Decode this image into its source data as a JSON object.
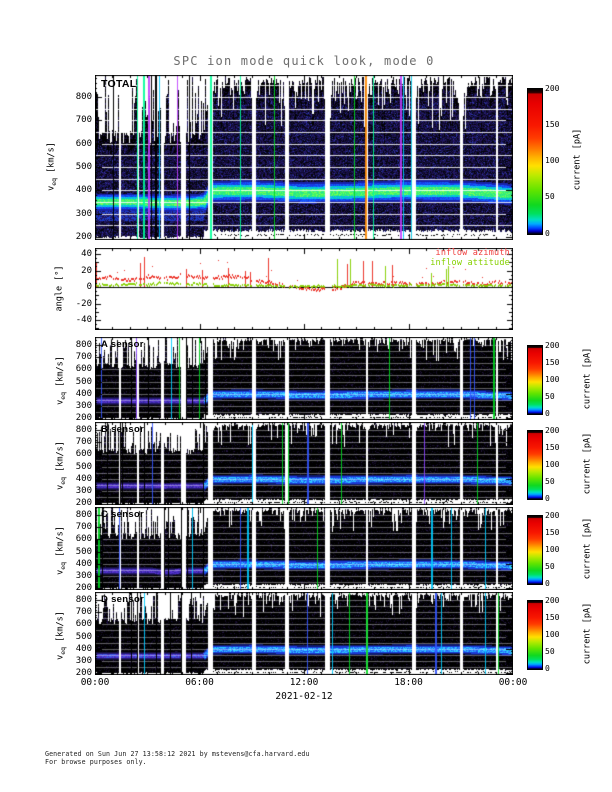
{
  "title": "SPC ion mode quick look, mode 0",
  "x_axis": {
    "tick_labels": [
      "00:00",
      "06:00",
      "12:00",
      "18:00",
      "00:00"
    ],
    "date_label": "2021-02-12"
  },
  "velocity_axis": {
    "label_main": "v",
    "label_sub": "eq",
    "label_unit": " [km/s]",
    "tick_labels": [
      "800",
      "700",
      "600",
      "500",
      "400",
      "300",
      "200"
    ]
  },
  "angle_axis": {
    "label": "angle [°]",
    "tick_labels": [
      "40",
      "20",
      "0",
      "-20",
      "-40"
    ]
  },
  "colorbar": {
    "label": "current [pA]",
    "tick_labels": [
      "200",
      "150",
      "100",
      "50",
      "0"
    ]
  },
  "panels": {
    "total": {
      "label": "TOTAL"
    },
    "angle": {
      "legend": [
        {
          "label": "inflow azimuth",
          "color": "#f04040"
        },
        {
          "label": "inflow attitude",
          "color": "#86d000"
        }
      ]
    },
    "a": {
      "label": "A sensor"
    },
    "b": {
      "label": "B sensor"
    },
    "c": {
      "label": "C sensor"
    },
    "d": {
      "label": "D sensor"
    }
  },
  "footer": {
    "line1": "Generated on Sun Jun 27 13:58:12 2021 by mstevens@cfa.harvard.edu",
    "line2": "For browse purposes only."
  },
  "chart_data": [
    {
      "type": "heatmap",
      "panel": "TOTAL",
      "x_unit": "hours",
      "x_range": [
        0,
        24
      ],
      "x_date": "2021-02-12",
      "y_label": "v_eq [km/s]",
      "y_range": [
        200,
        850
      ],
      "y_ticks": [
        200,
        300,
        400,
        500,
        600,
        700,
        800
      ],
      "color_label": "current [pA]",
      "color_range": [
        0,
        200
      ],
      "color_ticks": [
        0,
        50,
        100,
        150,
        200
      ],
      "bulk_speed_band": {
        "x_hours": [
          0,
          2,
          4,
          6,
          6.3,
          6.6,
          9,
          12,
          15,
          18,
          21,
          24
        ],
        "v_kms": [
          348,
          350,
          345,
          348,
          352,
          395,
          398,
          388,
          392,
          398,
          396,
          382
        ]
      }
    },
    {
      "type": "scatter",
      "panel": "angle",
      "y_label": "angle [°]",
      "y_range": [
        -47,
        47
      ],
      "y_ticks": [
        -40,
        -20,
        0,
        20,
        40
      ],
      "series": [
        {
          "name": "inflow azimuth",
          "color": "#f04040",
          "x_hours": [
            0,
            1,
            2,
            3,
            4,
            5,
            6,
            7,
            8,
            9,
            10,
            11,
            12,
            13,
            14,
            15,
            16,
            17,
            18,
            19,
            20,
            21,
            22,
            23,
            24
          ],
          "angle_deg": [
            9,
            12,
            8,
            13,
            10,
            14,
            12,
            11,
            13,
            9,
            5,
            1,
            -2,
            -3,
            -2,
            6,
            3,
            5,
            4,
            3,
            5,
            7,
            3,
            5,
            4
          ]
        },
        {
          "name": "inflow attitude",
          "color": "#86d000",
          "x_hours": [
            0,
            1,
            2,
            3,
            4,
            5,
            6,
            7,
            8,
            9,
            10,
            11,
            12,
            13,
            14,
            15,
            16,
            17,
            18,
            19,
            20,
            21,
            22,
            23,
            24
          ],
          "angle_deg": [
            2,
            1,
            3,
            2,
            5,
            2,
            3,
            1,
            2,
            1,
            1,
            0,
            0,
            1,
            0,
            1,
            2,
            1,
            2,
            1,
            3,
            2,
            1,
            2,
            1
          ]
        }
      ]
    },
    {
      "type": "heatmap",
      "panel": "A sensor",
      "x_range": [
        0,
        24
      ],
      "y_label": "v_eq [km/s]",
      "y_range": [
        200,
        850
      ],
      "y_ticks": [
        200,
        300,
        400,
        500,
        600,
        700,
        800
      ],
      "color_label": "current [pA]",
      "color_range": [
        0,
        200
      ],
      "color_ticks": [
        0,
        50,
        100,
        150,
        200
      ],
      "bulk_speed_band": {
        "x_hours": [
          0,
          2,
          4,
          6,
          6.3,
          6.6,
          9,
          12,
          15,
          18,
          21,
          24
        ],
        "v_kms": [
          340,
          342,
          338,
          340,
          345,
          392,
          396,
          386,
          390,
          396,
          394,
          380
        ]
      }
    },
    {
      "type": "heatmap",
      "panel": "B sensor",
      "x_range": [
        0,
        24
      ],
      "y_label": "v_eq [km/s]",
      "y_range": [
        200,
        850
      ],
      "y_ticks": [
        200,
        300,
        400,
        500,
        600,
        700,
        800
      ],
      "color_label": "current [pA]",
      "color_range": [
        0,
        200
      ],
      "color_ticks": [
        0,
        50,
        100,
        150,
        200
      ],
      "bulk_speed_band": {
        "x_hours": [
          0,
          2,
          4,
          6,
          6.3,
          6.6,
          9,
          12,
          15,
          18,
          21,
          24
        ],
        "v_kms": [
          338,
          340,
          336,
          339,
          344,
          392,
          396,
          386,
          390,
          396,
          394,
          380
        ]
      }
    },
    {
      "type": "heatmap",
      "panel": "C sensor",
      "x_range": [
        0,
        24
      ],
      "y_label": "v_eq [km/s]",
      "y_range": [
        200,
        850
      ],
      "y_ticks": [
        200,
        300,
        400,
        500,
        600,
        700,
        800
      ],
      "color_label": "current [pA]",
      "color_range": [
        0,
        200
      ],
      "color_ticks": [
        0,
        50,
        100,
        150,
        200
      ],
      "bulk_speed_band": {
        "x_hours": [
          0,
          2,
          4,
          6,
          6.3,
          6.6,
          9,
          12,
          15,
          18,
          21,
          24
        ],
        "v_kms": [
          336,
          339,
          335,
          338,
          343,
          392,
          395,
          386,
          390,
          395,
          393,
          380
        ]
      }
    },
    {
      "type": "heatmap",
      "panel": "D sensor",
      "x_range": [
        0,
        24
      ],
      "y_label": "v_eq [km/s]",
      "y_range": [
        200,
        850
      ],
      "y_ticks": [
        200,
        300,
        400,
        500,
        600,
        700,
        800
      ],
      "color_label": "current [pA]",
      "color_range": [
        0,
        200
      ],
      "color_ticks": [
        0,
        50,
        100,
        150,
        200
      ],
      "bulk_speed_band": {
        "x_hours": [
          0,
          2,
          4,
          6,
          6.3,
          6.6,
          9,
          12,
          15,
          18,
          21,
          24
        ],
        "v_kms": [
          340,
          343,
          338,
          341,
          346,
          392,
          396,
          386,
          390,
          396,
          394,
          380
        ]
      }
    }
  ]
}
